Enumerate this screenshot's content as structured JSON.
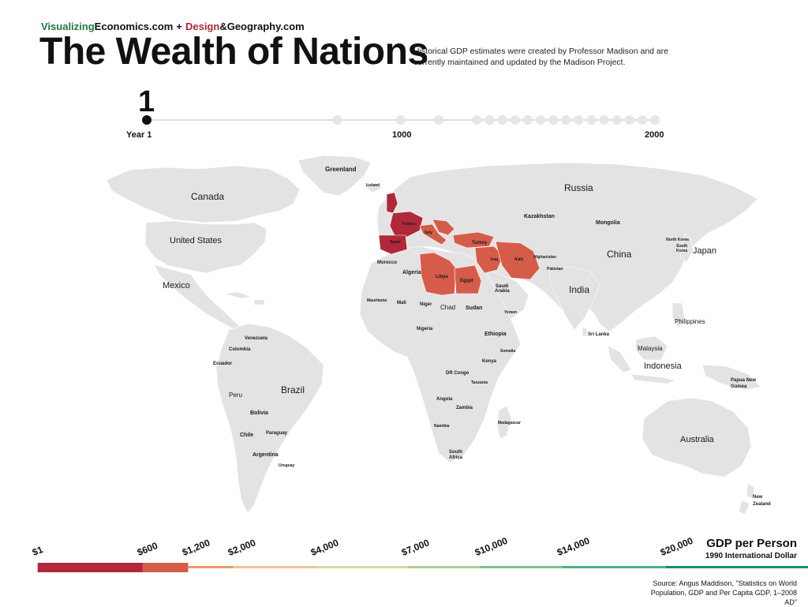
{
  "header": {
    "brand_green": "Visualizing",
    "brand_dark": "Economics.com",
    "brand_plus": "+",
    "brand_red": "Design",
    "brand_dark2": "&Geography.com",
    "title": "The Wealth of Nations",
    "subtitle": "Historical GDP estimates were created by Professor Madison and are currently maintained and updated by the Madison Project."
  },
  "timeline": {
    "current_year": "1",
    "current_label": "Year 1",
    "mid_label": "1000",
    "end_label": "2000",
    "start_year": 1,
    "end_year": 2000,
    "marker_years": [
      750,
      1000,
      1150,
      1300,
      1350,
      1400,
      1450,
      1500,
      1550,
      1600,
      1650,
      1700,
      1750,
      1800,
      1850,
      1900,
      1950,
      2000
    ]
  },
  "map": {
    "land_color": "#e3e3e3",
    "continents": {
      "greenland": "Greenland",
      "canada": "Canada",
      "united_states": "United States",
      "mexico": "Mexico",
      "russia": "Russia",
      "kazakhstan": "Kazakhstan",
      "mongolia": "Mongolia",
      "china": "China",
      "japan": "Japan",
      "india": "India",
      "brazil": "Brazil",
      "peru": "Peru",
      "bolivia": "Bolivia",
      "chile": "Chile",
      "argentina": "Argentina",
      "paraguay": "Paraguay",
      "uruguay": "Uruguay",
      "colombia": "Colombia",
      "ecuador": "Ecuador",
      "venezuela": "Venezuela",
      "australia": "Australia",
      "indonesia": "Indonesia",
      "malaysia": "Malaysia",
      "philippines": "Philippines",
      "papua": "Papua New",
      "papua2": "Guinea",
      "new_zealand": "New",
      "new_zealand2": "Zealand",
      "algeria": "Algeria",
      "libya": "Libya",
      "egypt": "Egypt",
      "chad": "Chad",
      "sudan": "Sudan",
      "mali": "Mali",
      "niger": "Niger",
      "mauritania": "Mauritania",
      "nigeria": "Nigeria",
      "ethiopia": "Ethiopia",
      "somalia": "Somalia",
      "kenya": "Kenya",
      "tanzania": "Tanzania",
      "angola": "Angola",
      "zambia": "Zambia",
      "namibia": "Namibia",
      "south_africa": "South",
      "south_africa2": "Africa",
      "madagascar": "Madagascar",
      "dr_congo": "DR Congo",
      "morocco": "Morocco",
      "iran": "Iran",
      "iraq": "Iraq",
      "turkey": "Turkey",
      "saudi": "Saudi",
      "saudi2": "Arabia",
      "afghanistan": "Afghanistan",
      "pakistan": "Pakistan",
      "spain": "Spain",
      "france": "France",
      "italy": "Italy",
      "iceland": "Iceland",
      "yemen": "Yemen",
      "sri_lanka": "Sri Lanka",
      "north_korea": "North Korea",
      "south_korea": "South",
      "south_korea2": "Korea"
    }
  },
  "legend": {
    "title": "GDP per Person",
    "subtitle": "1990 International Dollar",
    "ticks": [
      "$1",
      "$600",
      "$1,200",
      "$2,000",
      "$4,000",
      "$7,000",
      "$10,000",
      "$14,000",
      "$20,000"
    ],
    "colors": [
      "#b0283a",
      "#d65c4a",
      "#ea9a6d",
      "#f2c38f",
      "#d8dc9a",
      "#a9d08e",
      "#7cc08a",
      "#4fae80",
      "#238b63"
    ]
  },
  "source": {
    "line1": "Source: Angus Maddison, \"Statistics on World",
    "line2": "Population, GDP and Per Capita GDP, 1–2008 AD\""
  }
}
